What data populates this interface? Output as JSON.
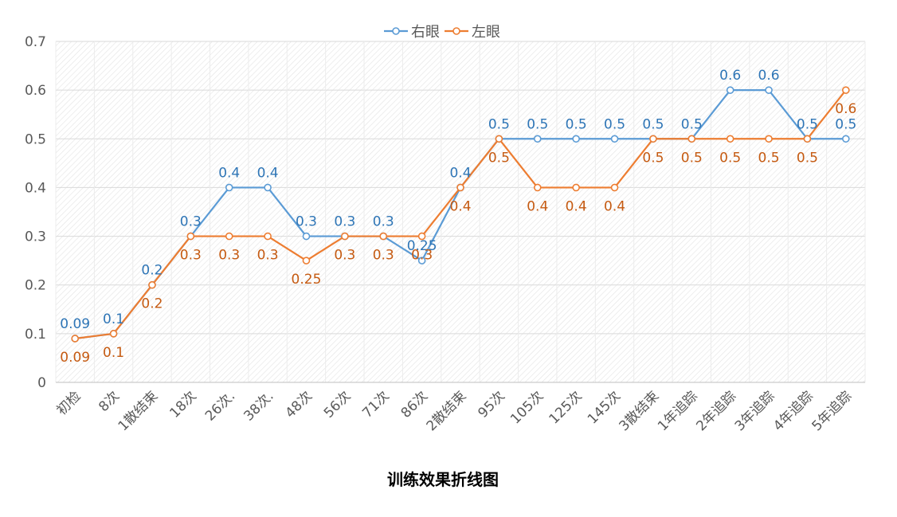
{
  "chart_data": {
    "type": "line",
    "title": "训练效果折线图",
    "xlabel": "",
    "ylabel": "",
    "ylim": [
      0,
      0.7
    ],
    "yticks": [
      "0",
      "0.1",
      "0.2",
      "0.3",
      "0.4",
      "0.5",
      "0.6",
      "0.7"
    ],
    "grid": true,
    "legend": "top-center",
    "categories": [
      "初检",
      "8次",
      "1散结束",
      "18次",
      "26次.",
      "38次.",
      "48次",
      "56次",
      "71次",
      "86次",
      "2散结束",
      "95次",
      "105次",
      "125次",
      "145次",
      "3散结束",
      "1年追踪",
      "2年追踪",
      "3年追踪",
      "4年追踪",
      "5年追踪"
    ],
    "series": [
      {
        "name": "右眼",
        "color": "#5B9BD5",
        "label_color": "#2E75B6",
        "values": [
          0.09,
          0.1,
          0.2,
          0.3,
          0.4,
          0.4,
          0.3,
          0.3,
          0.3,
          0.25,
          0.4,
          0.5,
          0.5,
          0.5,
          0.5,
          0.5,
          0.5,
          0.6,
          0.6,
          0.5,
          0.5
        ],
        "labels": [
          "0.09",
          "0.1",
          "0.2",
          "0.3",
          "0.4",
          "0.4",
          "0.3",
          "0.3",
          "0.3",
          "0.25",
          "0.4",
          "0.5",
          "0.5",
          "0.5",
          "0.5",
          "0.5",
          "0.5",
          "0.6",
          "0.6",
          "0.5",
          "0.5"
        ]
      },
      {
        "name": "左眼",
        "color": "#ED7D31",
        "label_color": "#C55A11",
        "values": [
          0.09,
          0.1,
          0.2,
          0.3,
          0.3,
          0.3,
          0.25,
          0.3,
          0.3,
          0.3,
          0.4,
          0.5,
          0.4,
          0.4,
          0.4,
          0.5,
          0.5,
          0.5,
          0.5,
          0.5,
          0.6
        ],
        "labels": [
          "0.09",
          "0.1",
          "0.2",
          "0.3",
          "0.3",
          "0.3",
          "0.25",
          "0.3",
          "0.3",
          "0.3",
          "0.4",
          "0.5",
          "0.4",
          "0.4",
          "0.4",
          "0.5",
          "0.5",
          "0.5",
          "0.5",
          "0.5",
          "0.6"
        ]
      }
    ]
  }
}
